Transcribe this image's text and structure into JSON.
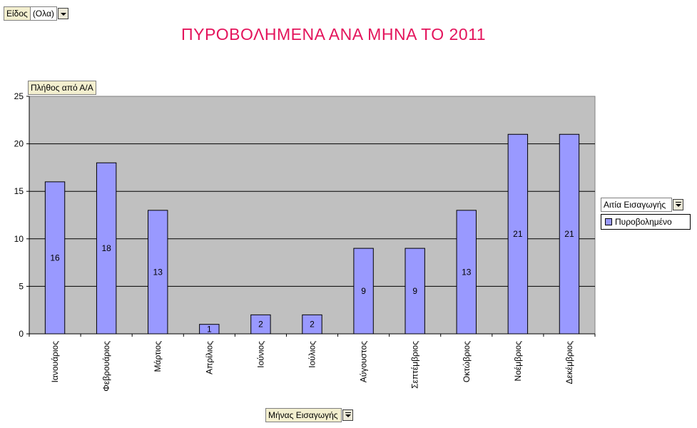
{
  "filter": {
    "label": "Είδος",
    "value": "(Ολα)"
  },
  "title": "ΠΥΡΟΒΟΛΗΜΕΝΑ ΑΝΑ ΜΗΝΑ ΤΟ 2011",
  "data_field": {
    "label": "Πλήθος από Α/Α"
  },
  "series_field": {
    "label": "Αιτία Εισαγωγής"
  },
  "category_field": {
    "label": "Μήνας Εισαγωγής"
  },
  "colors": {
    "bar": "#9999ff",
    "plot_bg": "#c0c0c0",
    "title": "#e4145c"
  },
  "chart_data": {
    "type": "bar",
    "title": "ΠΥΡΟΒΟΛΗΜΕΝΑ ΑΝΑ ΜΗΝΑ ΤΟ 2011",
    "categories": [
      "Ιανουάριος",
      "Φεβρουάριος",
      "Μάρτιος",
      "Απρίλιος",
      "Ιούνιος",
      "Ιούλιος",
      "Αύγουστος",
      "Σεπτέμβριος",
      "Οκτώβριος",
      "Νοέμβριος",
      "Δεκέμβριος"
    ],
    "series": [
      {
        "name": "Πυροβολημένο",
        "values": [
          16,
          18,
          13,
          1,
          2,
          2,
          9,
          9,
          13,
          21,
          21
        ]
      }
    ],
    "ylim": [
      0,
      25
    ],
    "yticks": [
      0,
      5,
      10,
      15,
      20,
      25
    ],
    "grid": true,
    "legend": "right"
  }
}
